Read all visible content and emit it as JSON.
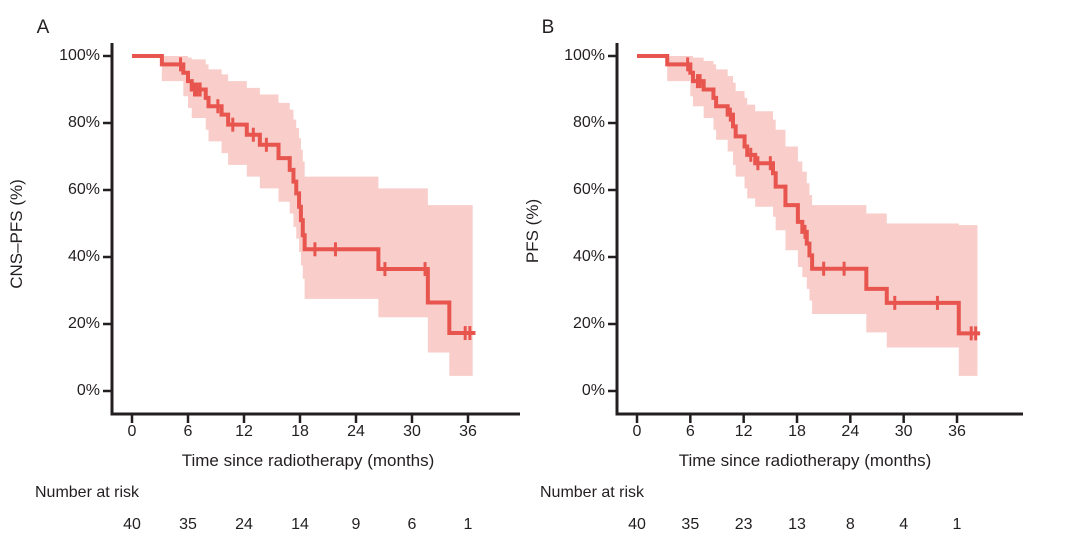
{
  "figure": {
    "background": "#ffffff",
    "text_color": "#231f20",
    "axis_color": "#231f20",
    "curve_color": "#e8554e",
    "band_color": "#f8cdca"
  },
  "chart_data": [
    {
      "type": "line",
      "subtype": "kaplan-meier-step",
      "panel_label": "A",
      "ylabel": "CNS–PFS (%)",
      "xlabel": "Time since radiotherapy (months)",
      "xlim": [
        0,
        41.5
      ],
      "ylim": [
        0,
        100
      ],
      "grid": false,
      "legend": "none",
      "x_ticks": [
        {
          "value": 0,
          "label": "0"
        },
        {
          "value": 6,
          "label": "6"
        },
        {
          "value": 12,
          "label": "12"
        },
        {
          "value": 18,
          "label": "18"
        },
        {
          "value": 24,
          "label": "24"
        },
        {
          "value": 30,
          "label": "30"
        },
        {
          "value": 36,
          "label": "36"
        }
      ],
      "y_ticks": [
        {
          "value": 100,
          "label": "100%"
        },
        {
          "value": 80,
          "label": "80%"
        },
        {
          "value": 60,
          "label": "60%"
        },
        {
          "value": 40,
          "label": "40%"
        },
        {
          "value": 20,
          "label": "20%"
        },
        {
          "value": 0,
          "label": "0%"
        }
      ],
      "risk_label": "Number at risk",
      "risk_values": [
        "40",
        "35",
        "24",
        "14",
        "9",
        "6",
        "1"
      ],
      "curve": {
        "start": [
          0,
          100
        ],
        "steps": [
          [
            3.2,
            97.5
          ],
          [
            5.5,
            95
          ],
          [
            6.0,
            92.5
          ],
          [
            6.4,
            90
          ],
          [
            7.9,
            87.5
          ],
          [
            8.2,
            85
          ],
          [
            9.6,
            82.5
          ],
          [
            10.3,
            79.5
          ],
          [
            12.3,
            76.5
          ],
          [
            13.7,
            73.5
          ],
          [
            15.7,
            69.5
          ],
          [
            16.9,
            66
          ],
          [
            17.3,
            62.5
          ],
          [
            17.6,
            59
          ],
          [
            17.9,
            55
          ],
          [
            18.1,
            51
          ],
          [
            18.3,
            46.5
          ],
          [
            18.5,
            42.3
          ],
          [
            26.4,
            36.4
          ],
          [
            31.7,
            26.4
          ],
          [
            34.0,
            17.3
          ]
        ],
        "end_t": 36.8
      },
      "censors": [
        [
          5.2,
          97.5
        ],
        [
          6.7,
          90
        ],
        [
          7.0,
          90
        ],
        [
          7.3,
          90
        ],
        [
          9.2,
          85
        ],
        [
          10.8,
          79.5
        ],
        [
          13.0,
          76.5
        ],
        [
          14.4,
          73.5
        ],
        [
          19.6,
          42.3
        ],
        [
          21.8,
          42.3
        ],
        [
          27.1,
          36.4
        ],
        [
          31.4,
          36.4
        ],
        [
          35.7,
          17.3
        ],
        [
          36.2,
          17.3
        ]
      ],
      "band": {
        "segments": [
          [
            3.2,
            92.5,
            100
          ],
          [
            5.5,
            88,
            100
          ],
          [
            6.0,
            84.5,
            99.5
          ],
          [
            6.4,
            81.5,
            99
          ],
          [
            7.9,
            78,
            97.5
          ],
          [
            8.2,
            74.5,
            96
          ],
          [
            9.6,
            71,
            94.5
          ],
          [
            10.3,
            67.5,
            92.5
          ],
          [
            12.3,
            64,
            90.5
          ],
          [
            13.7,
            60.5,
            88.5
          ],
          [
            15.7,
            56.5,
            86
          ],
          [
            16.9,
            53,
            84
          ],
          [
            17.3,
            49,
            81
          ],
          [
            17.6,
            45.5,
            78.5
          ],
          [
            17.9,
            41.5,
            75.5
          ],
          [
            18.1,
            37.5,
            72
          ],
          [
            18.3,
            33.5,
            68.5
          ],
          [
            18.5,
            27.5,
            64
          ],
          [
            26.4,
            22,
            60.5
          ],
          [
            31.7,
            11.5,
            55.5
          ],
          [
            34.0,
            4.5,
            55.5
          ]
        ],
        "end_t": 36.5
      }
    },
    {
      "type": "line",
      "subtype": "kaplan-meier-step",
      "panel_label": "B",
      "ylabel": "PFS (%)",
      "xlabel": "Time since radiotherapy (months)",
      "xlim": [
        0,
        43
      ],
      "ylim": [
        0,
        100
      ],
      "grid": false,
      "legend": "none",
      "x_ticks": [
        {
          "value": 0,
          "label": "0"
        },
        {
          "value": 6,
          "label": "6"
        },
        {
          "value": 12,
          "label": "12"
        },
        {
          "value": 18,
          "label": "18"
        },
        {
          "value": 24,
          "label": "24"
        },
        {
          "value": 30,
          "label": "30"
        },
        {
          "value": 36,
          "label": "36"
        }
      ],
      "y_ticks": [
        {
          "value": 100,
          "label": "100%"
        },
        {
          "value": 80,
          "label": "80%"
        },
        {
          "value": 60,
          "label": "60%"
        },
        {
          "value": 40,
          "label": "40%"
        },
        {
          "value": 20,
          "label": "20%"
        },
        {
          "value": 0,
          "label": "0%"
        }
      ],
      "risk_label": "Number at risk",
      "risk_values": [
        "40",
        "35",
        "23",
        "13",
        "8",
        "4",
        "1"
      ],
      "curve": {
        "start": [
          0,
          100
        ],
        "steps": [
          [
            3.4,
            97.5
          ],
          [
            6.0,
            95
          ],
          [
            6.3,
            92.5
          ],
          [
            7.5,
            90
          ],
          [
            8.6,
            87.5
          ],
          [
            8.9,
            85
          ],
          [
            10.2,
            82.5
          ],
          [
            10.8,
            79
          ],
          [
            11.1,
            76
          ],
          [
            12.1,
            73
          ],
          [
            12.4,
            70.5
          ],
          [
            13.3,
            68
          ],
          [
            15.3,
            65
          ],
          [
            15.6,
            61
          ],
          [
            16.7,
            55.5
          ],
          [
            18.1,
            50.5
          ],
          [
            18.6,
            47.5
          ],
          [
            19.1,
            44
          ],
          [
            19.4,
            40.5
          ],
          [
            19.7,
            36.5
          ],
          [
            25.8,
            30.5
          ],
          [
            28.1,
            26.3
          ],
          [
            36.2,
            17.2
          ]
        ],
        "end_t": 38.6
      },
      "censors": [
        [
          5.7,
          97.5
        ],
        [
          6.8,
          92.5
        ],
        [
          7.1,
          92.5
        ],
        [
          10.5,
          82.5
        ],
        [
          12.8,
          70.5
        ],
        [
          13.6,
          68
        ],
        [
          15.0,
          68
        ],
        [
          18.9,
          47.5
        ],
        [
          21.0,
          36.5
        ],
        [
          23.3,
          36.5
        ],
        [
          29.0,
          26.3
        ],
        [
          33.8,
          26.3
        ],
        [
          37.6,
          17.2
        ],
        [
          38.1,
          17.2
        ]
      ],
      "band": {
        "segments": [
          [
            3.4,
            92.5,
            100
          ],
          [
            6.0,
            88,
            100
          ],
          [
            6.3,
            85,
            99.5
          ],
          [
            7.5,
            81.5,
            98.5
          ],
          [
            8.6,
            78,
            97.5
          ],
          [
            8.9,
            75,
            96
          ],
          [
            10.2,
            71.5,
            94
          ],
          [
            10.8,
            67.5,
            92
          ],
          [
            11.1,
            64,
            89.5
          ],
          [
            12.1,
            60.5,
            87.5
          ],
          [
            12.4,
            57.5,
            85.5
          ],
          [
            13.3,
            55,
            83.5
          ],
          [
            15.3,
            52,
            81
          ],
          [
            15.6,
            48,
            78
          ],
          [
            16.7,
            42,
            73
          ],
          [
            18.1,
            37,
            68.5
          ],
          [
            18.6,
            34,
            65.5
          ],
          [
            19.1,
            30.5,
            62
          ],
          [
            19.4,
            27,
            58.5
          ],
          [
            19.7,
            23,
            55.5
          ],
          [
            25.8,
            17.5,
            53
          ],
          [
            28.1,
            13,
            50
          ],
          [
            36.2,
            4.5,
            49.5
          ]
        ],
        "end_t": 38.3
      }
    }
  ]
}
